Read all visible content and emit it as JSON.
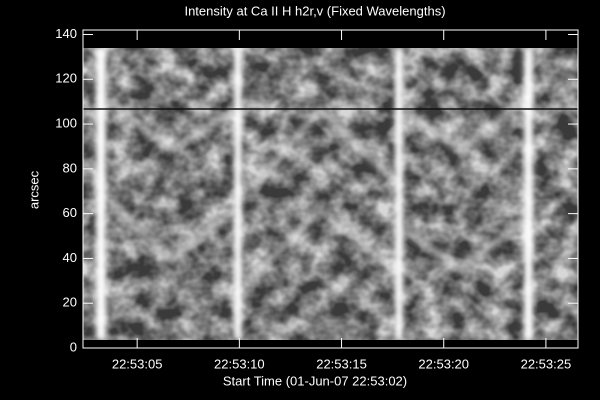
{
  "chart_data": {
    "type": "image",
    "title": "Intensity at Ca II H h2r,v (Fixed Wavelengths)",
    "xlabel": "Start Time (01-Jun-07 22:53:02)",
    "ylabel": "arcsec",
    "xlim": [
      2.35,
      26.57
    ],
    "xticks": [
      {
        "value": 5,
        "label": "22:53:05"
      },
      {
        "value": 10,
        "label": "22:53:10"
      },
      {
        "value": 15,
        "label": "22:53:15"
      },
      {
        "value": 20,
        "label": "22:53:20"
      },
      {
        "value": 25,
        "label": "22:53:25"
      }
    ],
    "ylim": [
      0,
      142
    ],
    "yticks": [
      0,
      20,
      40,
      60,
      80,
      100,
      120,
      140
    ]
  }
}
